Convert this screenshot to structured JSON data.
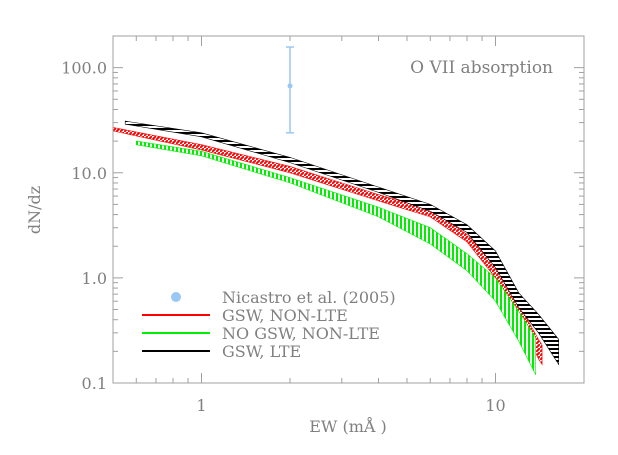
{
  "chart_data": {
    "type": "line",
    "xlabel": "EW (mÅ )",
    "ylabel": "dN/dz",
    "xscale": "log",
    "yscale": "log",
    "xlim": [
      0.5,
      20
    ],
    "ylim": [
      0.1,
      200
    ],
    "x_ticks": [
      {
        "value": 1,
        "label": "1"
      },
      {
        "value": 10,
        "label": "10"
      }
    ],
    "y_ticks": [
      {
        "value": 0.1,
        "label": "0.1"
      },
      {
        "value": 1,
        "label": "1.0"
      },
      {
        "value": 10,
        "label": "10.0"
      },
      {
        "value": 100,
        "label": "100.0"
      }
    ],
    "annotation": "O VII absorption",
    "legend_position": "bottom-left",
    "observation": {
      "name": "Nicastro et al. (2005)",
      "color": "#99c8f5",
      "x": 2.0,
      "y": 67,
      "y_err_low": 24,
      "y_err_high": 157
    },
    "series": [
      {
        "name": "GSW, NON-LTE",
        "color": "#ff0000",
        "hatch": "diagonal",
        "x": [
          0.5,
          1,
          2,
          4,
          6,
          8,
          10,
          12,
          14,
          14.4
        ],
        "upper": [
          27,
          18.5,
          11.5,
          6.2,
          4.5,
          2.6,
          1.3,
          0.56,
          0.26,
          0.23
        ],
        "lower": [
          25,
          16.5,
          10,
          5.4,
          3.8,
          2.2,
          1.0,
          0.42,
          0.17,
          0.15
        ]
      },
      {
        "name": "NO GSW, NON-LTE",
        "color": "#00ee00",
        "hatch": "vertical",
        "x": [
          0.6,
          1,
          2,
          4,
          6,
          8,
          10,
          12,
          13.7
        ],
        "upper": [
          20,
          16,
          9,
          4.7,
          3.0,
          1.7,
          1.0,
          0.48,
          0.27
        ],
        "lower": [
          18.5,
          14.5,
          8,
          3.8,
          2.1,
          1.17,
          0.6,
          0.25,
          0.12
        ]
      },
      {
        "name": "GSW, LTE",
        "color": "#000000",
        "hatch": "horizontal",
        "x": [
          0.55,
          1,
          2,
          4,
          6,
          8,
          10,
          12,
          14,
          16.4
        ],
        "upper": [
          31,
          24,
          14,
          7.3,
          5.0,
          3.2,
          1.8,
          0.72,
          0.45,
          0.26
        ],
        "lower": [
          29,
          22,
          12.5,
          6.5,
          4.3,
          2.7,
          1.25,
          0.52,
          0.3,
          0.15
        ]
      }
    ]
  }
}
